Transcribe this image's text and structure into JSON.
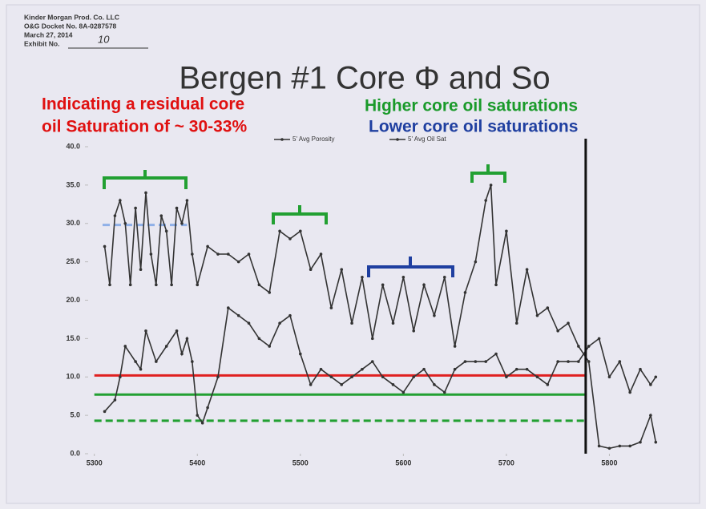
{
  "stamp": {
    "lines": [
      "Kinder Morgan Prod. Co. LLC",
      "O&G Docket No. 8A-0287578",
      "March 27, 2014",
      "Exhibit No."
    ],
    "handwritten": "10"
  },
  "chart_data": {
    "type": "line",
    "title": "Bergen #1 Core Φ and So",
    "annotations": [
      {
        "text": "Indicating a residual core",
        "color": "#e01010"
      },
      {
        "text": "oil Saturation of ~ 30-33%",
        "color": "#e01010"
      },
      {
        "text": "Higher core oil saturations",
        "color": "#1a9a2a"
      },
      {
        "text": "Lower core oil saturations",
        "color": "#1f3fa0"
      }
    ],
    "xlim": [
      5294,
      5858
    ],
    "xticks": [
      5300,
      5400,
      5500,
      5600,
      5700,
      5800
    ],
    "ylim": [
      0,
      40
    ],
    "yticks": [
      {
        "value": 0,
        "label": "0.0"
      },
      {
        "value": 5,
        "label": "5.0"
      },
      {
        "value": 10,
        "label": "10.0"
      },
      {
        "value": 15,
        "label": "15.0"
      },
      {
        "value": 20,
        "label": "20.0"
      },
      {
        "value": 25,
        "label": "25.0"
      },
      {
        "value": 30,
        "label": "30.0"
      },
      {
        "value": 35,
        "label": "35.0"
      },
      {
        "value": 40,
        "label": "40.0"
      }
    ],
    "series": [
      {
        "name": "5' Avg Porosity",
        "color": "#333333",
        "x": [
          5310,
          5320,
          5325,
          5330,
          5340,
          5345,
          5350,
          5360,
          5370,
          5380,
          5385,
          5390,
          5395,
          5400,
          5405,
          5410,
          5420,
          5430,
          5440,
          5450,
          5460,
          5470,
          5480,
          5490,
          5500,
          5510,
          5520,
          5530,
          5540,
          5550,
          5560,
          5570,
          5580,
          5590,
          5600,
          5610,
          5620,
          5630,
          5640,
          5650,
          5660,
          5670,
          5680,
          5690,
          5700,
          5710,
          5720,
          5730,
          5740,
          5750,
          5760,
          5770,
          5780,
          5790,
          5800,
          5810,
          5820,
          5830,
          5840,
          5845
        ],
        "values": [
          5.5,
          7,
          10,
          14,
          12,
          11,
          16,
          12,
          14,
          16,
          13,
          15,
          12,
          5,
          4,
          6,
          10,
          19,
          18,
          17,
          15,
          14,
          17,
          18,
          13,
          9,
          11,
          10,
          9,
          10,
          11,
          12,
          10,
          9,
          8,
          10,
          11,
          9,
          8,
          11,
          12,
          12,
          12,
          13,
          10,
          11,
          11,
          10,
          9,
          12,
          12,
          12,
          14,
          15,
          10,
          12,
          8,
          11,
          9,
          10
        ]
      },
      {
        "name": "5' Avg Oil Sat",
        "color": "#333333",
        "x": [
          5310,
          5315,
          5320,
          5325,
          5330,
          5335,
          5340,
          5345,
          5350,
          5355,
          5360,
          5365,
          5370,
          5375,
          5380,
          5385,
          5390,
          5395,
          5400,
          5410,
          5420,
          5430,
          5440,
          5450,
          5460,
          5470,
          5480,
          5490,
          5500,
          5510,
          5520,
          5530,
          5540,
          5550,
          5560,
          5570,
          5580,
          5590,
          5600,
          5610,
          5620,
          5630,
          5640,
          5650,
          5660,
          5670,
          5680,
          5685,
          5690,
          5700,
          5710,
          5720,
          5730,
          5740,
          5750,
          5760,
          5770,
          5780,
          5790,
          5800,
          5810,
          5820,
          5830,
          5840,
          5845
        ],
        "values": [
          27,
          22,
          31,
          33,
          30,
          22,
          32,
          24,
          34,
          26,
          22,
          31,
          29,
          22,
          32,
          30,
          33,
          26,
          22,
          27,
          26,
          26,
          25,
          26,
          22,
          21,
          29,
          28,
          29,
          24,
          26,
          19,
          24,
          17,
          23,
          15,
          22,
          17,
          23,
          16,
          22,
          18,
          23,
          14,
          21,
          25,
          33,
          35,
          22,
          29,
          17,
          24,
          18,
          19,
          16,
          17,
          14,
          12,
          1,
          0.7,
          1,
          1,
          1.5,
          5,
          1.5
        ]
      }
    ],
    "reference_lines": [
      {
        "y": 10.2,
        "x": [
          5300,
          5778
        ],
        "color": "#e02020",
        "style": "solid"
      },
      {
        "y": 7.7,
        "x": [
          5300,
          5778
        ],
        "color": "#22a032",
        "style": "solid"
      },
      {
        "y": 4.3,
        "x": [
          5300,
          5778
        ],
        "color": "#22a032",
        "style": "dashed"
      },
      {
        "y": 29.8,
        "x": [
          5308,
          5390
        ],
        "color": "#8fb0e8",
        "style": "dashed"
      }
    ],
    "vertical_lines": [
      {
        "x": 5777,
        "color": "#111111"
      }
    ]
  }
}
